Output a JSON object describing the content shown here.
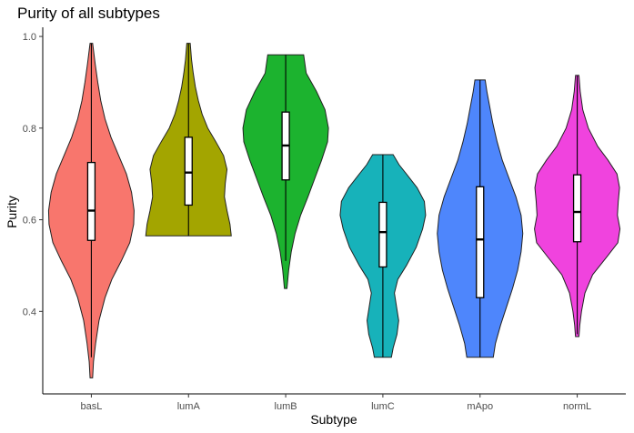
{
  "chart_data": {
    "type": "violin",
    "title": "Purity of all subtypes",
    "xlabel": "Subtype",
    "ylabel": "Purity",
    "ylim": [
      0.22,
      1.02
    ],
    "yticks": [
      "0.4",
      "0.6",
      "0.8",
      "1.0"
    ],
    "ytick_values": [
      0.4,
      0.6,
      0.8,
      1.0
    ],
    "grid": false,
    "legend": "none",
    "series": [
      {
        "category": "basL",
        "color": "#F8766D",
        "min": 0.255,
        "max": 0.985,
        "whisker_low": 0.3,
        "q1": 0.555,
        "median": 0.62,
        "q3": 0.725,
        "profile": [
          [
            0.255,
            0.03
          ],
          [
            0.29,
            0.05
          ],
          [
            0.33,
            0.1
          ],
          [
            0.38,
            0.18
          ],
          [
            0.43,
            0.32
          ],
          [
            0.47,
            0.48
          ],
          [
            0.51,
            0.7
          ],
          [
            0.55,
            0.9
          ],
          [
            0.59,
            0.99
          ],
          [
            0.62,
            1.0
          ],
          [
            0.66,
            0.94
          ],
          [
            0.7,
            0.82
          ],
          [
            0.74,
            0.64
          ],
          [
            0.78,
            0.46
          ],
          [
            0.82,
            0.32
          ],
          [
            0.86,
            0.22
          ],
          [
            0.9,
            0.15
          ],
          [
            0.94,
            0.09
          ],
          [
            0.97,
            0.05
          ],
          [
            0.985,
            0.03
          ]
        ]
      },
      {
        "category": "lumA",
        "color": "#A3A500",
        "min": 0.565,
        "max": 0.985,
        "whisker_low": 0.565,
        "q1": 0.632,
        "median": 0.703,
        "q3": 0.78,
        "profile": [
          [
            0.565,
            1.0
          ],
          [
            0.59,
            0.97
          ],
          [
            0.62,
            0.9
          ],
          [
            0.65,
            0.84
          ],
          [
            0.68,
            0.86
          ],
          [
            0.71,
            0.9
          ],
          [
            0.74,
            0.82
          ],
          [
            0.77,
            0.64
          ],
          [
            0.8,
            0.45
          ],
          [
            0.83,
            0.32
          ],
          [
            0.86,
            0.23
          ],
          [
            0.89,
            0.16
          ],
          [
            0.92,
            0.11
          ],
          [
            0.95,
            0.07
          ],
          [
            0.985,
            0.04
          ]
        ]
      },
      {
        "category": "lumB",
        "color": "#1CB32F",
        "min": 0.45,
        "max": 0.96,
        "whisker_low": 0.51,
        "q1": 0.687,
        "median": 0.762,
        "q3": 0.835,
        "profile": [
          [
            0.45,
            0.03
          ],
          [
            0.49,
            0.07
          ],
          [
            0.53,
            0.13
          ],
          [
            0.57,
            0.22
          ],
          [
            0.61,
            0.35
          ],
          [
            0.65,
            0.52
          ],
          [
            0.69,
            0.68
          ],
          [
            0.73,
            0.84
          ],
          [
            0.77,
            0.98
          ],
          [
            0.8,
            1.0
          ],
          [
            0.84,
            0.92
          ],
          [
            0.88,
            0.72
          ],
          [
            0.92,
            0.48
          ],
          [
            0.96,
            0.42
          ]
        ]
      },
      {
        "category": "lumC",
        "color": "#17B2BA",
        "min": 0.3,
        "max": 0.742,
        "whisker_low": 0.3,
        "q1": 0.497,
        "median": 0.573,
        "q3": 0.638,
        "profile": [
          [
            0.3,
            0.2
          ],
          [
            0.32,
            0.24
          ],
          [
            0.35,
            0.33
          ],
          [
            0.38,
            0.37
          ],
          [
            0.41,
            0.32
          ],
          [
            0.44,
            0.27
          ],
          [
            0.47,
            0.35
          ],
          [
            0.5,
            0.55
          ],
          [
            0.54,
            0.78
          ],
          [
            0.58,
            0.93
          ],
          [
            0.61,
            1.0
          ],
          [
            0.64,
            0.97
          ],
          [
            0.67,
            0.8
          ],
          [
            0.7,
            0.55
          ],
          [
            0.72,
            0.38
          ],
          [
            0.742,
            0.24
          ]
        ]
      },
      {
        "category": "mApo",
        "color": "#4E86FC",
        "min": 0.3,
        "max": 0.905,
        "whisker_low": 0.3,
        "q1": 0.43,
        "median": 0.557,
        "q3": 0.672,
        "profile": [
          [
            0.3,
            0.31
          ],
          [
            0.33,
            0.36
          ],
          [
            0.37,
            0.48
          ],
          [
            0.41,
            0.62
          ],
          [
            0.45,
            0.76
          ],
          [
            0.49,
            0.88
          ],
          [
            0.53,
            0.96
          ],
          [
            0.57,
            1.0
          ],
          [
            0.61,
            0.96
          ],
          [
            0.65,
            0.84
          ],
          [
            0.69,
            0.68
          ],
          [
            0.73,
            0.52
          ],
          [
            0.77,
            0.4
          ],
          [
            0.81,
            0.3
          ],
          [
            0.85,
            0.22
          ],
          [
            0.88,
            0.16
          ],
          [
            0.905,
            0.12
          ]
        ]
      },
      {
        "category": "normL",
        "color": "#F043DE",
        "min": 0.345,
        "max": 0.915,
        "whisker_low": 0.35,
        "q1": 0.552,
        "median": 0.617,
        "q3": 0.698,
        "profile": [
          [
            0.345,
            0.04
          ],
          [
            0.37,
            0.06
          ],
          [
            0.4,
            0.1
          ],
          [
            0.44,
            0.18
          ],
          [
            0.48,
            0.36
          ],
          [
            0.52,
            0.7
          ],
          [
            0.55,
            0.95
          ],
          [
            0.58,
            1.0
          ],
          [
            0.61,
            0.94
          ],
          [
            0.64,
            0.96
          ],
          [
            0.67,
            0.99
          ],
          [
            0.7,
            0.93
          ],
          [
            0.73,
            0.72
          ],
          [
            0.76,
            0.48
          ],
          [
            0.8,
            0.26
          ],
          [
            0.84,
            0.13
          ],
          [
            0.88,
            0.07
          ],
          [
            0.915,
            0.04
          ]
        ]
      }
    ]
  }
}
